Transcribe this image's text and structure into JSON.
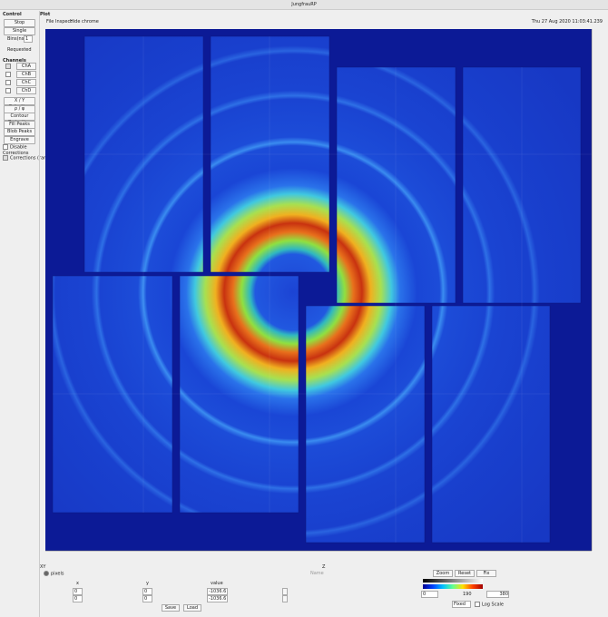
{
  "window": {
    "title": "JungfrauRP"
  },
  "control": {
    "title": "Control",
    "buttons": [
      "Stop",
      "Single"
    ],
    "bins_label": "Bins(ns)",
    "bins_value": "1",
    "requested": "Requested",
    "channels_title": "Channels",
    "channels": [
      "ChA",
      "ChB",
      "ChC",
      "ChD"
    ],
    "tools": [
      "X / Y Selection",
      "ρ / φ Selection",
      "Contour Projection",
      "Fill Peaks",
      "Blob Peaks",
      "Engrave"
    ],
    "options": [
      "Disable Corrections",
      "Corrections (rank)"
    ]
  },
  "plot": {
    "title": "Plot",
    "menu": [
      "File",
      "Inspect",
      "Hide chrome"
    ],
    "timestamp": "Thu 27 Aug 2020 11:03:41.239"
  },
  "footer": {
    "xy": "XY",
    "z": "Z",
    "pixels": "pixels",
    "name": "Name",
    "headers": [
      "x",
      "y",
      "value"
    ],
    "row1": [
      "0",
      "0",
      "-1036.6"
    ],
    "row2": [
      "0",
      "0",
      "-1036.6"
    ],
    "buttons": [
      "Save",
      "Load"
    ],
    "zoom_buttons": [
      "Zoom",
      "Reset",
      "Fix"
    ],
    "scale": [
      "0",
      "190",
      "380"
    ],
    "mode": "Fixed",
    "log": "Log Scale"
  }
}
